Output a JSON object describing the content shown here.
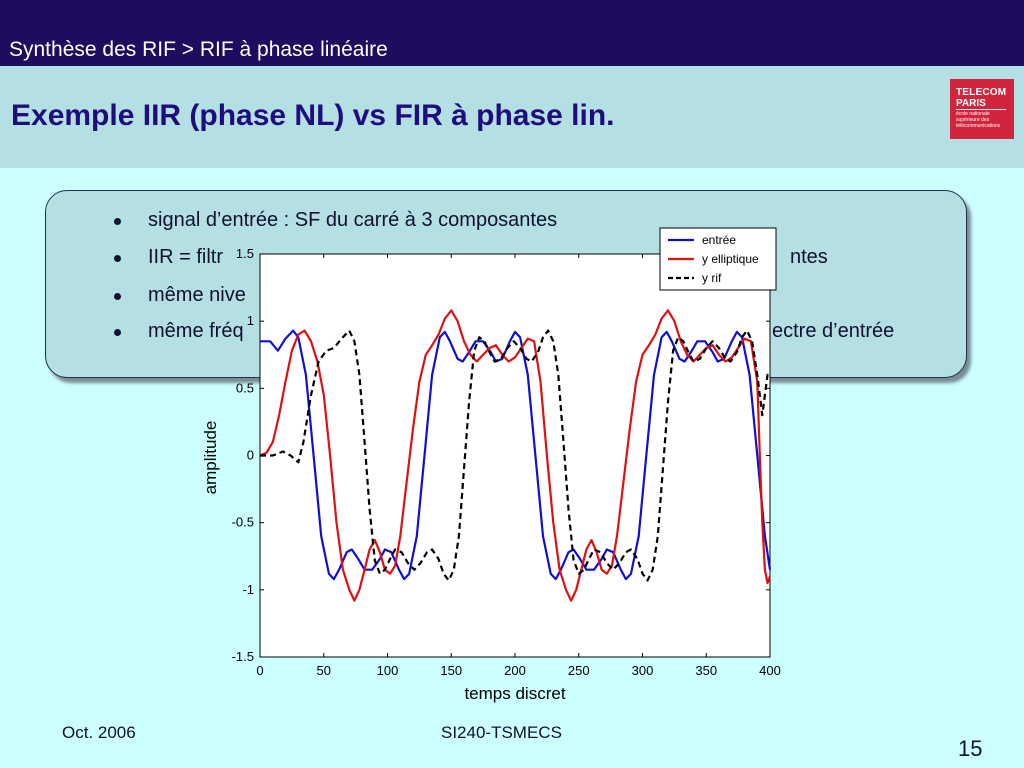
{
  "header": {
    "breadcrumb": "Synthèse des RIF > RIF à phase linéaire",
    "title": "Exemple IIR (phase NL) vs FIR à phase lin.",
    "logo": {
      "line1": "TELECOM",
      "line2": "PARIS",
      "line3": "école nationale supérieure des télécommunications"
    }
  },
  "bullets": [
    {
      "left": "signal d’entrée : SF du carré à 3 composantes",
      "right": ""
    },
    {
      "left": "IIR = filtr",
      "right": "ntes"
    },
    {
      "left": "même nive",
      "right": ""
    },
    {
      "left": "même fréq",
      "right": "ectre d’entrée"
    }
  ],
  "chart_data": {
    "type": "line",
    "xlabel": "temps discret",
    "ylabel": "amplitude",
    "xlim": [
      0,
      400
    ],
    "ylim": [
      -1.5,
      1.5
    ],
    "xticks": [
      "0",
      "50",
      "100",
      "150",
      "200",
      "250",
      "300",
      "350",
      "400"
    ],
    "yticks": [
      "-1.5",
      "-1",
      "-0.5",
      "0",
      "0.5",
      "1",
      "1.5"
    ],
    "grid": false,
    "legend_position": "top-right",
    "series": [
      {
        "name": "entrée",
        "color": "#1010d0",
        "style": "solid",
        "points": [
          [
            0,
            0.85
          ],
          [
            8,
            0.85
          ],
          [
            14,
            0.78
          ],
          [
            20,
            0.87
          ],
          [
            26,
            0.93
          ],
          [
            30,
            0.88
          ],
          [
            36,
            0.6
          ],
          [
            42,
            0.0
          ],
          [
            48,
            -0.6
          ],
          [
            54,
            -0.88
          ],
          [
            58,
            -0.92
          ],
          [
            62,
            -0.85
          ],
          [
            68,
            -0.72
          ],
          [
            72,
            -0.7
          ],
          [
            77,
            -0.77
          ],
          [
            82,
            -0.85
          ],
          [
            88,
            -0.85
          ],
          [
            94,
            -0.77
          ],
          [
            98,
            -0.7
          ],
          [
            103,
            -0.72
          ],
          [
            109,
            -0.85
          ],
          [
            113,
            -0.92
          ],
          [
            117,
            -0.88
          ],
          [
            123,
            -0.6
          ],
          [
            129,
            0.0
          ],
          [
            135,
            0.6
          ],
          [
            141,
            0.88
          ],
          [
            145,
            0.92
          ],
          [
            149,
            0.85
          ],
          [
            155,
            0.72
          ],
          [
            159,
            0.7
          ],
          [
            164,
            0.77
          ],
          [
            169,
            0.85
          ],
          [
            175,
            0.85
          ],
          [
            181,
            0.77
          ],
          [
            185,
            0.7
          ],
          [
            190,
            0.72
          ],
          [
            196,
            0.85
          ],
          [
            200,
            0.92
          ],
          [
            204,
            0.88
          ],
          [
            210,
            0.6
          ],
          [
            216,
            0.0
          ],
          [
            222,
            -0.6
          ],
          [
            228,
            -0.88
          ],
          [
            232,
            -0.92
          ],
          [
            236,
            -0.85
          ],
          [
            242,
            -0.72
          ],
          [
            246,
            -0.7
          ],
          [
            251,
            -0.77
          ],
          [
            256,
            -0.85
          ],
          [
            262,
            -0.85
          ],
          [
            268,
            -0.77
          ],
          [
            272,
            -0.7
          ],
          [
            277,
            -0.72
          ],
          [
            283,
            -0.85
          ],
          [
            287,
            -0.92
          ],
          [
            291,
            -0.88
          ],
          [
            297,
            -0.6
          ],
          [
            303,
            0.0
          ],
          [
            309,
            0.6
          ],
          [
            315,
            0.88
          ],
          [
            319,
            0.92
          ],
          [
            323,
            0.85
          ],
          [
            329,
            0.72
          ],
          [
            333,
            0.7
          ],
          [
            338,
            0.77
          ],
          [
            343,
            0.85
          ],
          [
            349,
            0.85
          ],
          [
            355,
            0.77
          ],
          [
            359,
            0.7
          ],
          [
            364,
            0.72
          ],
          [
            370,
            0.85
          ],
          [
            374,
            0.92
          ],
          [
            378,
            0.88
          ],
          [
            384,
            0.6
          ],
          [
            390,
            0.0
          ],
          [
            396,
            -0.6
          ],
          [
            400,
            -0.85
          ]
        ]
      },
      {
        "name": "y elliptique",
        "color": "#e01010",
        "style": "solid",
        "points": [
          [
            0,
            0.0
          ],
          [
            5,
            0.02
          ],
          [
            10,
            0.1
          ],
          [
            15,
            0.3
          ],
          [
            20,
            0.55
          ],
          [
            25,
            0.78
          ],
          [
            30,
            0.9
          ],
          [
            35,
            0.93
          ],
          [
            40,
            0.85
          ],
          [
            45,
            0.7
          ],
          [
            50,
            0.45
          ],
          [
            55,
            -0.0
          ],
          [
            60,
            -0.5
          ],
          [
            65,
            -0.85
          ],
          [
            70,
            -1.0
          ],
          [
            74,
            -1.08
          ],
          [
            78,
            -1.0
          ],
          [
            82,
            -0.85
          ],
          [
            86,
            -0.7
          ],
          [
            90,
            -0.63
          ],
          [
            94,
            -0.72
          ],
          [
            98,
            -0.85
          ],
          [
            102,
            -0.88
          ],
          [
            106,
            -0.82
          ],
          [
            110,
            -0.6
          ],
          [
            115,
            -0.2
          ],
          [
            120,
            0.2
          ],
          [
            125,
            0.55
          ],
          [
            130,
            0.75
          ],
          [
            135,
            0.82
          ],
          [
            140,
            0.9
          ],
          [
            145,
            1.02
          ],
          [
            150,
            1.08
          ],
          [
            155,
            1.0
          ],
          [
            160,
            0.85
          ],
          [
            165,
            0.75
          ],
          [
            170,
            0.7
          ],
          [
            175,
            0.75
          ],
          [
            180,
            0.8
          ],
          [
            185,
            0.82
          ],
          [
            190,
            0.75
          ],
          [
            195,
            0.7
          ],
          [
            200,
            0.73
          ],
          [
            205,
            0.8
          ],
          [
            210,
            0.87
          ],
          [
            215,
            0.85
          ],
          [
            220,
            0.55
          ],
          [
            225,
            0.0
          ],
          [
            230,
            -0.5
          ],
          [
            235,
            -0.85
          ],
          [
            240,
            -1.0
          ],
          [
            244,
            -1.08
          ],
          [
            248,
            -1.0
          ],
          [
            252,
            -0.85
          ],
          [
            256,
            -0.7
          ],
          [
            260,
            -0.63
          ],
          [
            264,
            -0.72
          ],
          [
            268,
            -0.85
          ],
          [
            272,
            -0.88
          ],
          [
            276,
            -0.82
          ],
          [
            280,
            -0.6
          ],
          [
            285,
            -0.2
          ],
          [
            290,
            0.2
          ],
          [
            295,
            0.55
          ],
          [
            300,
            0.75
          ],
          [
            305,
            0.82
          ],
          [
            310,
            0.9
          ],
          [
            315,
            1.02
          ],
          [
            320,
            1.08
          ],
          [
            325,
            1.0
          ],
          [
            330,
            0.85
          ],
          [
            335,
            0.75
          ],
          [
            340,
            0.7
          ],
          [
            345,
            0.75
          ],
          [
            350,
            0.8
          ],
          [
            355,
            0.82
          ],
          [
            360,
            0.75
          ],
          [
            365,
            0.7
          ],
          [
            370,
            0.73
          ],
          [
            375,
            0.8
          ],
          [
            380,
            0.87
          ],
          [
            385,
            0.85
          ],
          [
            390,
            0.55
          ],
          [
            392,
            0.0
          ],
          [
            394,
            -0.5
          ],
          [
            396,
            -0.85
          ],
          [
            398,
            -0.95
          ],
          [
            400,
            -0.9
          ]
        ]
      },
      {
        "name": "y rif",
        "color": "#000000",
        "style": "dashed",
        "points": [
          [
            0,
            0.0
          ],
          [
            10,
            0.0
          ],
          [
            18,
            0.03
          ],
          [
            24,
            0.0
          ],
          [
            30,
            -0.05
          ],
          [
            34,
            0.1
          ],
          [
            40,
            0.45
          ],
          [
            46,
            0.7
          ],
          [
            52,
            0.78
          ],
          [
            58,
            0.8
          ],
          [
            64,
            0.87
          ],
          [
            70,
            0.93
          ],
          [
            74,
            0.85
          ],
          [
            78,
            0.6
          ],
          [
            82,
            0.1
          ],
          [
            86,
            -0.4
          ],
          [
            90,
            -0.78
          ],
          [
            94,
            -0.88
          ],
          [
            98,
            -0.85
          ],
          [
            102,
            -0.77
          ],
          [
            106,
            -0.7
          ],
          [
            111,
            -0.72
          ],
          [
            116,
            -0.8
          ],
          [
            121,
            -0.85
          ],
          [
            126,
            -0.8
          ],
          [
            131,
            -0.72
          ],
          [
            135,
            -0.7
          ],
          [
            140,
            -0.77
          ],
          [
            144,
            -0.88
          ],
          [
            148,
            -0.93
          ],
          [
            152,
            -0.85
          ],
          [
            156,
            -0.6
          ],
          [
            160,
            -0.1
          ],
          [
            164,
            0.4
          ],
          [
            168,
            0.78
          ],
          [
            172,
            0.88
          ],
          [
            176,
            0.85
          ],
          [
            180,
            0.77
          ],
          [
            184,
            0.7
          ],
          [
            189,
            0.72
          ],
          [
            194,
            0.8
          ],
          [
            199,
            0.85
          ],
          [
            204,
            0.8
          ],
          [
            209,
            0.72
          ],
          [
            213,
            0.7
          ],
          [
            218,
            0.77
          ],
          [
            222,
            0.88
          ],
          [
            226,
            0.93
          ],
          [
            230,
            0.85
          ],
          [
            234,
            0.6
          ],
          [
            238,
            0.1
          ],
          [
            242,
            -0.4
          ],
          [
            246,
            -0.78
          ],
          [
            250,
            -0.88
          ],
          [
            254,
            -0.85
          ],
          [
            258,
            -0.77
          ],
          [
            262,
            -0.7
          ],
          [
            267,
            -0.72
          ],
          [
            272,
            -0.8
          ],
          [
            277,
            -0.85
          ],
          [
            282,
            -0.8
          ],
          [
            287,
            -0.72
          ],
          [
            291,
            -0.7
          ],
          [
            296,
            -0.77
          ],
          [
            300,
            -0.88
          ],
          [
            304,
            -0.93
          ],
          [
            308,
            -0.85
          ],
          [
            312,
            -0.6
          ],
          [
            316,
            -0.1
          ],
          [
            320,
            0.4
          ],
          [
            324,
            0.78
          ],
          [
            328,
            0.88
          ],
          [
            332,
            0.85
          ],
          [
            336,
            0.77
          ],
          [
            340,
            0.7
          ],
          [
            345,
            0.72
          ],
          [
            350,
            0.8
          ],
          [
            355,
            0.85
          ],
          [
            360,
            0.8
          ],
          [
            365,
            0.72
          ],
          [
            369,
            0.7
          ],
          [
            374,
            0.77
          ],
          [
            378,
            0.88
          ],
          [
            382,
            0.93
          ],
          [
            386,
            0.85
          ],
          [
            390,
            0.6
          ],
          [
            394,
            0.3
          ],
          [
            398,
            0.6
          ],
          [
            400,
            0.6
          ]
        ]
      }
    ]
  },
  "footer": {
    "date": "Oct. 2006",
    "course": "SI240-TSMECS",
    "page": "15"
  }
}
